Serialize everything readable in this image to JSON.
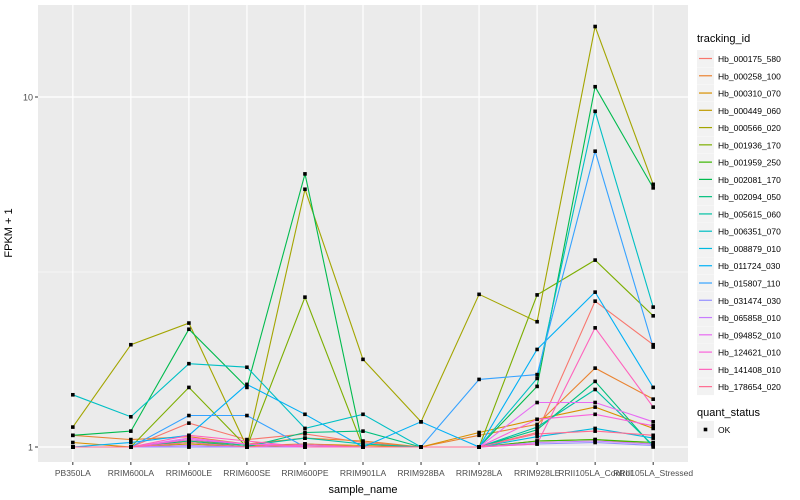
{
  "chart_data": {
    "type": "line",
    "xlabel": "sample_name",
    "ylabel": "FPKM + 1",
    "y_scale": "log10",
    "ylim": [
      0.97,
      18.3
    ],
    "y_ticks": [
      1,
      10
    ],
    "y_tick_labels": [
      "1",
      "10"
    ],
    "grid": true,
    "legend_placement": "right",
    "categories": [
      "PB350LA",
      "RRIM600LA",
      "RRIM600LE",
      "RRIM600SE",
      "RRIM600PE",
      "RRIM901LA",
      "RRIM928BA",
      "RRIM928LA",
      "RRIM928LE",
      "RRII105LA_Control",
      "RRII105LA_Stressed"
    ],
    "legend_title": "tracking_id",
    "series": [
      {
        "name": "Hb_000175_580",
        "color": "#F8766D",
        "values": [
          1,
          1,
          1.17,
          1.05,
          1.09,
          1.03,
          1,
          1,
          1.1,
          2.61,
          1.96
        ]
      },
      {
        "name": "Hb_000258_100",
        "color": "#EA8331",
        "values": [
          1.08,
          1.05,
          1.07,
          1.02,
          1.06,
          1.04,
          1,
          1.08,
          1.16,
          1.68,
          1.37
        ]
      },
      {
        "name": "Hb_000310_070",
        "color": "#D89000",
        "values": [
          1.03,
          1,
          1.04,
          1.01,
          1.02,
          1.01,
          1,
          1.1,
          1.2,
          1.3,
          1.13
        ]
      },
      {
        "name": "Hb_000449_060",
        "color": "#C09B00",
        "values": [
          1,
          1,
          1.02,
          1,
          1.01,
          1,
          1,
          1,
          1.04,
          1.05,
          1.02
        ]
      },
      {
        "name": "Hb_000566_020",
        "color": "#A3A500",
        "values": [
          1.14,
          1.96,
          2.26,
          1,
          5.45,
          1.78,
          1.18,
          2.73,
          2.28,
          15.9,
          5.63
        ]
      },
      {
        "name": "Hb_001936_170",
        "color": "#7CAE00",
        "values": [
          1,
          1,
          1.48,
          1,
          2.68,
          1,
          1,
          1,
          2.72,
          3.42,
          2.37
        ]
      },
      {
        "name": "Hb_001959_250",
        "color": "#39B600",
        "values": [
          1,
          1,
          1.03,
          1,
          1.02,
          1,
          1,
          1,
          1.04,
          1.05,
          1.03
        ]
      },
      {
        "name": "Hb_002081_170",
        "color": "#00BB4E",
        "values": [
          1.08,
          1.11,
          2.17,
          1.48,
          6.03,
          1,
          1,
          1,
          1.49,
          10.7,
          5.5
        ]
      },
      {
        "name": "Hb_002094_050",
        "color": "#00BF7D",
        "values": [
          1,
          1,
          1.04,
          1,
          1.1,
          1.11,
          1,
          1,
          1.12,
          1.54,
          1
        ]
      },
      {
        "name": "Hb_005615_060",
        "color": "#00C1A3",
        "values": [
          1,
          1,
          1.05,
          1.01,
          1.06,
          1.02,
          1,
          1,
          1.14,
          1.46,
          1.01
        ]
      },
      {
        "name": "Hb_006351_070",
        "color": "#00BFC4",
        "values": [
          1.41,
          1.22,
          1.73,
          1.69,
          1.13,
          1.24,
          1,
          1,
          1.57,
          9.1,
          2.51
        ]
      },
      {
        "name": "Hb_008879_010",
        "color": "#00BAE0",
        "values": [
          1,
          1,
          1,
          1,
          1,
          1,
          1,
          1,
          1.07,
          1.13,
          1.06
        ]
      },
      {
        "name": "Hb_011724_030",
        "color": "#00B0F6",
        "values": [
          1,
          1.03,
          1.08,
          1.51,
          1.24,
          1,
          1.18,
          1,
          1.9,
          2.77,
          1.48
        ]
      },
      {
        "name": "Hb_015807_110",
        "color": "#35A2FF",
        "values": [
          1,
          1,
          1.23,
          1.23,
          1,
          1,
          1,
          1.56,
          1.61,
          7.0,
          1.93
        ]
      },
      {
        "name": "Hb_031474_030",
        "color": "#9590FF",
        "values": [
          1,
          1,
          1,
          1,
          1,
          1,
          1,
          1,
          1.02,
          1.03,
          1.01
        ]
      },
      {
        "name": "Hb_065858_010",
        "color": "#C77CFF",
        "values": [
          1,
          1,
          1.01,
          1,
          1,
          1,
          1,
          1,
          1.03,
          1.04,
          1.02
        ]
      },
      {
        "name": "Hb_094852_010",
        "color": "#E76BF3",
        "values": [
          1,
          1,
          1.06,
          1.02,
          1.01,
          1,
          1,
          1,
          1.34,
          1.34,
          1.18
        ]
      },
      {
        "name": "Hb_124621_010",
        "color": "#FA62DB",
        "values": [
          1,
          1,
          1.05,
          1.02,
          1,
          1,
          1,
          1,
          1.2,
          1.24,
          1.15
        ]
      },
      {
        "name": "Hb_141408_010",
        "color": "#FF62BC",
        "values": [
          1,
          1,
          1.08,
          1.04,
          1,
          1,
          1,
          1,
          1.02,
          2.19,
          1.3
        ]
      },
      {
        "name": "Hb_178654_020",
        "color": "#FF6C91",
        "values": [
          1,
          1,
          1.03,
          1,
          1.02,
          1,
          1,
          1,
          1.09,
          1.11,
          1.08
        ]
      }
    ],
    "shape_legend_title": "quant_status",
    "shape_legend_items": [
      "OK"
    ]
  }
}
